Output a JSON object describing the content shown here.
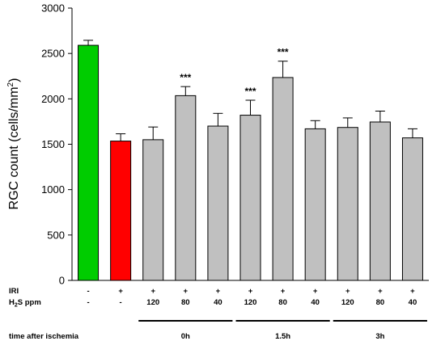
{
  "chart_data": {
    "type": "bar",
    "ylabel": "RGC count (cells/mm²)",
    "ylabel_main": "RGC count (cells/mm",
    "ylabel_sup": "2",
    "ylabel_close": ")",
    "ylim": [
      0,
      3000
    ],
    "yticks": [
      "0",
      "500",
      "1000",
      "1500",
      "2000",
      "2500",
      "3000"
    ],
    "grid": false,
    "values": [
      2590,
      1535,
      1550,
      2035,
      1700,
      1820,
      2235,
      1670,
      1685,
      1745,
      1570
    ],
    "errors": [
      55,
      80,
      140,
      100,
      140,
      165,
      180,
      90,
      105,
      120,
      100
    ],
    "colors": [
      "#00cc00",
      "#ff0000",
      "#c0c0c0",
      "#c0c0c0",
      "#c0c0c0",
      "#c0c0c0",
      "#c0c0c0",
      "#c0c0c0",
      "#c0c0c0",
      "#c0c0c0",
      "#c0c0c0"
    ],
    "significance": [
      "",
      "",
      "",
      "***",
      "",
      "***",
      "***",
      "",
      "",
      "",
      ""
    ],
    "conditions": {
      "iri_label": "IRI",
      "h2s_label_pre": "H",
      "h2s_label_sub": "2",
      "h2s_label_post": "S ppm",
      "iri": [
        "-",
        "+",
        "+",
        "+",
        "+",
        "+",
        "+",
        "+",
        "+",
        "+",
        "+"
      ],
      "h2s_ppm": [
        "-",
        "-",
        "120",
        "80",
        "40",
        "120",
        "80",
        "40",
        "120",
        "80",
        "40"
      ]
    },
    "time_label": "time after ischemia",
    "time_groups": [
      {
        "label": "0h",
        "from_bar": 2,
        "to_bar": 4
      },
      {
        "label": "1.5h",
        "from_bar": 5,
        "to_bar": 7
      },
      {
        "label": "3h",
        "from_bar": 8,
        "to_bar": 10
      }
    ]
  }
}
